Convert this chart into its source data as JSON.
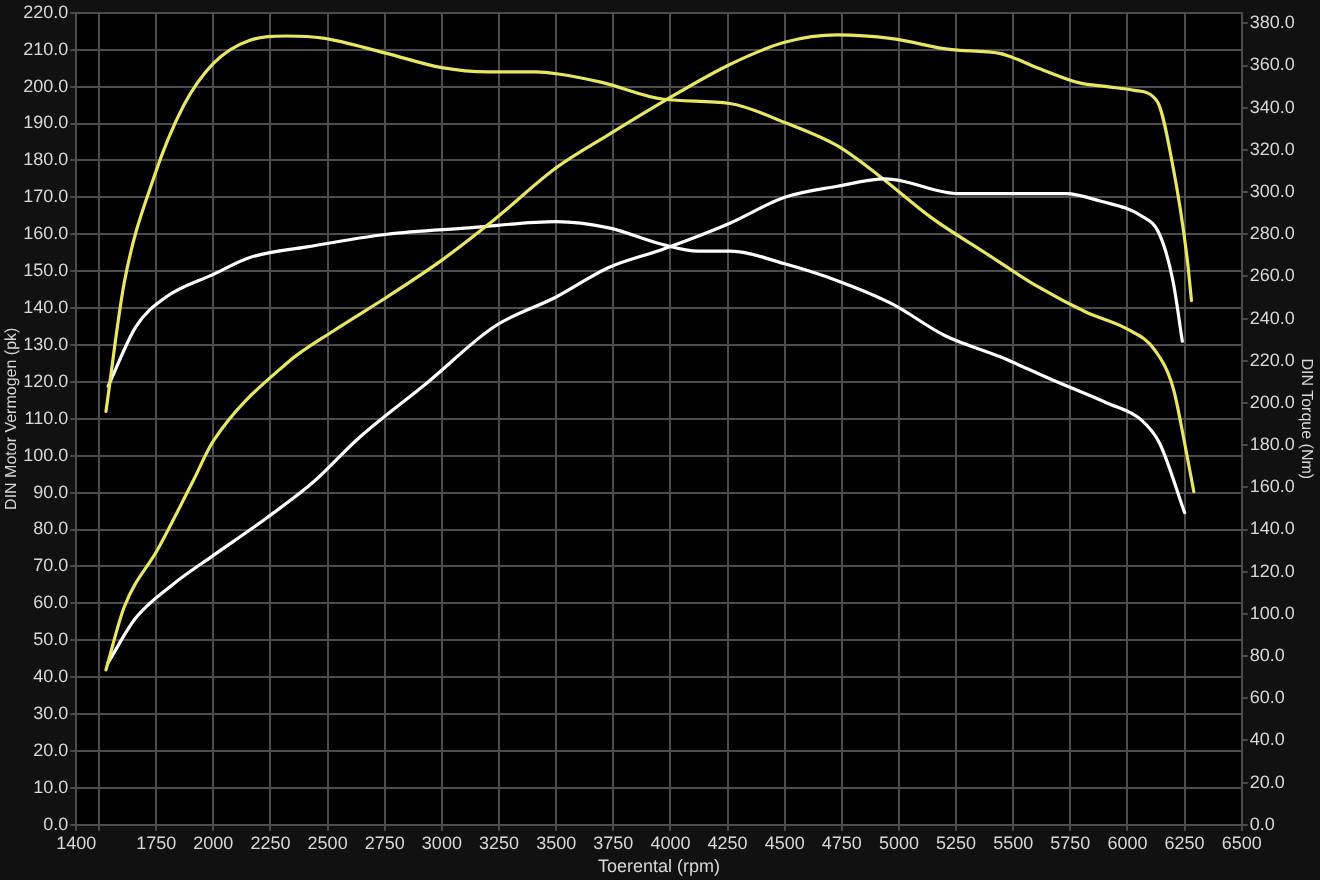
{
  "chart_data": {
    "type": "line",
    "xlabel": "Toerental (rpm)",
    "ylabel": "DIN Motor Vermogen (pk)",
    "y2label": "DIN Torque (Nm)",
    "xlim": [
      1400,
      6500
    ],
    "xticks": [
      1400,
      {
        "value": 1500,
        "label": null
      },
      1750,
      2000,
      2250,
      2500,
      2750,
      3000,
      3250,
      3500,
      3750,
      4000,
      4250,
      4500,
      4750,
      5000,
      5250,
      5500,
      5750,
      6000,
      6250,
      6500
    ],
    "ylim": [
      0,
      220
    ],
    "yticks": [
      {
        "value": 0,
        "label": "0.0"
      },
      {
        "value": 10,
        "label": "10.0"
      },
      {
        "value": 20,
        "label": "20.0"
      },
      {
        "value": 30,
        "label": "30.0"
      },
      {
        "value": 40,
        "label": "40.0"
      },
      {
        "value": 50,
        "label": "50.0"
      },
      {
        "value": 60,
        "label": "60.0"
      },
      {
        "value": 70,
        "label": "70.0"
      },
      {
        "value": 80,
        "label": "80.0"
      },
      {
        "value": 90,
        "label": "90.0"
      },
      {
        "value": 100,
        "label": "100.0"
      },
      {
        "value": 110,
        "label": "110.0"
      },
      {
        "value": 120,
        "label": "120.0"
      },
      {
        "value": 130,
        "label": "130.0"
      },
      {
        "value": 140,
        "label": "140.0"
      },
      {
        "value": 150,
        "label": "150.0"
      },
      {
        "value": 160,
        "label": "160.0"
      },
      {
        "value": 170,
        "label": "170.0"
      },
      {
        "value": 180,
        "label": "180.0"
      },
      {
        "value": 190,
        "label": "190.0"
      },
      {
        "value": 200,
        "label": "200.0"
      },
      {
        "value": 210,
        "label": "210.0"
      },
      {
        "value": 220,
        "label": "220.0"
      }
    ],
    "y2lim": [
      0,
      385
    ],
    "y2ticks": [
      {
        "value": 0,
        "label": "0.0"
      },
      {
        "value": 20,
        "label": "20.0"
      },
      {
        "value": 40,
        "label": "40.0"
      },
      {
        "value": 60,
        "label": "60.0"
      },
      {
        "value": 80,
        "label": "80.0"
      },
      {
        "value": 100,
        "label": "100.0"
      },
      {
        "value": 120,
        "label": "120.0"
      },
      {
        "value": 140,
        "label": "140.0"
      },
      {
        "value": 160,
        "label": "160.0"
      },
      {
        "value": 180,
        "label": "180.0"
      },
      {
        "value": 200,
        "label": "200.0"
      },
      {
        "value": 220,
        "label": "220.0"
      },
      {
        "value": 240,
        "label": "240.0"
      },
      {
        "value": 260,
        "label": "260.0"
      },
      {
        "value": 280,
        "label": "280.0"
      },
      {
        "value": 300,
        "label": "300.0"
      },
      {
        "value": 320,
        "label": "320.0"
      },
      {
        "value": 340,
        "label": "340.0"
      },
      {
        "value": 360,
        "label": "360.0"
      },
      {
        "value": 380,
        "label": "380.0"
      }
    ],
    "grid": true,
    "legend": false,
    "marker": "none",
    "line_style": "solid",
    "series": [
      {
        "color": "#e8e860",
        "x": [
          1530,
          1610,
          1760,
          1910,
          2000,
          2320,
          2530,
          2760,
          3000,
          3230,
          3500,
          3730,
          3970,
          4260,
          4500,
          4730,
          4970,
          5230,
          5440,
          5610,
          5790,
          5910,
          6030,
          6130,
          6200,
          6260,
          6280
        ],
        "values": [
          42,
          59,
          75,
          93,
          104,
          125,
          134,
          143,
          153,
          164,
          178,
          187,
          196,
          206,
          212,
          214,
          213,
          210,
          209,
          205,
          201,
          200,
          199,
          196,
          178,
          154,
          142
        ]
      },
      {
        "color": "#ffffff",
        "x": [
          1540,
          1660,
          1820,
          2000,
          2230,
          2440,
          2640,
          2940,
          3230,
          3500,
          3730,
          3970,
          4260,
          4500,
          4730,
          4940,
          5260,
          5500,
          5730,
          5880,
          6060,
          6140,
          6200,
          6240
        ],
        "values": [
          44,
          56,
          65,
          73,
          83,
          93,
          105,
          120,
          135,
          143,
          151,
          156,
          163,
          170,
          173,
          175,
          171,
          171,
          171,
          169,
          165,
          160,
          147,
          131
        ]
      },
      {
        "color": "#e8e860",
        "axis": "y2",
        "x": [
          1530,
          1610,
          1740,
          1870,
          2000,
          2160,
          2320,
          2480,
          2750,
          3000,
          3200,
          3410,
          3510,
          3700,
          3970,
          4260,
          4500,
          4730,
          4910,
          5140,
          5380,
          5610,
          5820,
          6000,
          6120,
          6200,
          6250,
          6290
        ],
        "values": [
          196,
          257,
          307,
          341,
          361,
          372,
          374,
          373,
          366,
          359,
          357,
          357,
          356,
          352,
          344,
          342,
          333,
          322,
          308,
          288,
          271,
          255,
          243,
          235,
          225,
          207,
          181,
          158
        ]
      },
      {
        "color": "#ffffff",
        "axis": "y2",
        "x": [
          1540,
          1660,
          1790,
          2000,
          2160,
          2410,
          2760,
          3120,
          3500,
          3730,
          3970,
          4120,
          4260,
          4500,
          4730,
          4970,
          5200,
          5440,
          5670,
          5910,
          6060,
          6140,
          6250
        ],
        "values": [
          208,
          236,
          250,
          261,
          269,
          274,
          280,
          283,
          286,
          283,
          275,
          272,
          272,
          266,
          258,
          247,
          232,
          222,
          211,
          200,
          192,
          181,
          148
        ]
      }
    ]
  }
}
